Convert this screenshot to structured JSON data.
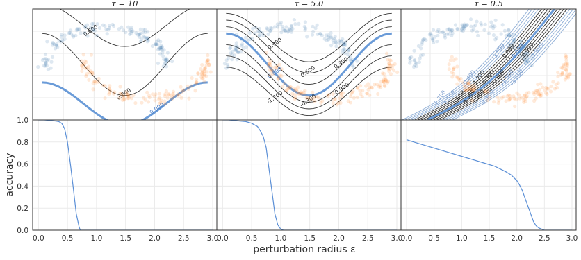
{
  "figure": {
    "xlabel": "perturbation radius ε",
    "ylabel": "accuracy"
  },
  "chart_data": [
    {
      "type": "scatter",
      "title": "τ = 10",
      "contour_levels": [
        {
          "label": "0.600",
          "value": 0.6
        },
        {
          "label": "0.300",
          "value": 0.3
        },
        {
          "label": "0.000",
          "value": 0.0
        }
      ]
    },
    {
      "type": "scatter",
      "title": "τ = 5.0",
      "contour_levels": [
        {
          "label": "0.900",
          "value": 0.9
        },
        {
          "label": "0.600",
          "value": 0.6
        },
        {
          "label": "0.300",
          "value": 0.3
        },
        {
          "label": "0.000",
          "value": 0.0
        },
        {
          "label": "-0.300",
          "value": -0.3
        },
        {
          "label": "-0.900",
          "value": -0.9
        },
        {
          "label": "-1.200",
          "value": -1.2
        }
      ]
    },
    {
      "type": "scatter",
      "title": "τ = 0.5",
      "contour_levels": [
        {
          "label": "2.700",
          "value": 2.7
        },
        {
          "label": "2.400",
          "value": 2.4
        },
        {
          "label": "1.800",
          "value": 1.8
        },
        {
          "label": "1.500",
          "value": 1.5
        },
        {
          "label": "1.200",
          "value": 1.2
        },
        {
          "label": "0.900",
          "value": 0.9
        },
        {
          "label": "0.600",
          "value": 0.6
        },
        {
          "label": "0.300",
          "value": 0.3
        },
        {
          "label": "0.000",
          "value": 0.0
        },
        {
          "label": "-0.300",
          "value": -0.3
        },
        {
          "label": "-0.600",
          "value": -0.6
        },
        {
          "label": "-0.900",
          "value": -0.9
        },
        {
          "label": "-1.200",
          "value": -1.2
        },
        {
          "label": "-1.500",
          "value": -1.5
        },
        {
          "label": "-1.800",
          "value": -1.8
        },
        {
          "label": "-2.100",
          "value": -2.1
        },
        {
          "label": "-3.000",
          "value": -3.0
        }
      ]
    },
    {
      "type": "line",
      "xlabel": "perturbation radius ε",
      "ylabel": "accuracy",
      "xlim": [
        -0.1,
        3.0
      ],
      "ylim": [
        0.0,
        1.0
      ],
      "xticks": [
        "0.0",
        "0.5",
        "1.0",
        "1.5",
        "2.0",
        "2.5",
        "3.0"
      ],
      "yticks": [
        "0.0",
        "0.2",
        "0.4",
        "0.6",
        "0.8",
        "1.0"
      ],
      "grid": true,
      "series": [
        {
          "x": [
            0.0,
            0.1,
            0.2,
            0.3,
            0.35,
            0.4,
            0.45,
            0.5,
            0.55,
            0.6,
            0.65,
            0.7,
            0.72,
            0.8,
            3.0
          ],
          "y": [
            1.0,
            1.0,
            0.995,
            0.99,
            0.985,
            0.97,
            0.92,
            0.8,
            0.6,
            0.38,
            0.15,
            0.03,
            0.0,
            0.0,
            0.0
          ]
        }
      ]
    },
    {
      "type": "line",
      "xlim": [
        -0.1,
        3.0
      ],
      "ylim": [
        0.0,
        1.0
      ],
      "xticks": [
        "0.0",
        "0.5",
        "1.0",
        "1.5",
        "2.0",
        "2.5",
        "3.0"
      ],
      "grid": true,
      "series": [
        {
          "x": [
            0.0,
            0.1,
            0.2,
            0.3,
            0.4,
            0.5,
            0.55,
            0.6,
            0.65,
            0.7,
            0.75,
            0.8,
            0.85,
            0.9,
            0.95,
            1.0,
            1.05,
            3.0
          ],
          "y": [
            1.0,
            1.0,
            0.995,
            0.99,
            0.985,
            0.97,
            0.955,
            0.94,
            0.9,
            0.85,
            0.75,
            0.55,
            0.35,
            0.15,
            0.05,
            0.01,
            0.0,
            0.0
          ]
        }
      ]
    },
    {
      "type": "line",
      "xlim": [
        -0.1,
        3.0
      ],
      "ylim": [
        0.0,
        1.0
      ],
      "xticks": [
        "0.0",
        "0.5",
        "1.0",
        "1.5",
        "2.0",
        "2.5",
        "3.0"
      ],
      "grid": true,
      "series": [
        {
          "x": [
            0.0,
            0.2,
            0.4,
            0.6,
            0.8,
            1.0,
            1.2,
            1.4,
            1.6,
            1.8,
            1.9,
            2.0,
            2.05,
            2.1,
            2.15,
            2.2,
            2.25,
            2.3,
            2.35,
            2.4,
            2.45,
            2.5,
            2.55,
            3.0
          ],
          "y": [
            0.82,
            0.79,
            0.76,
            0.73,
            0.7,
            0.67,
            0.64,
            0.61,
            0.58,
            0.53,
            0.5,
            0.45,
            0.41,
            0.36,
            0.29,
            0.22,
            0.15,
            0.08,
            0.04,
            0.02,
            0.01,
            0.0,
            0.0,
            0.0
          ]
        }
      ]
    }
  ]
}
